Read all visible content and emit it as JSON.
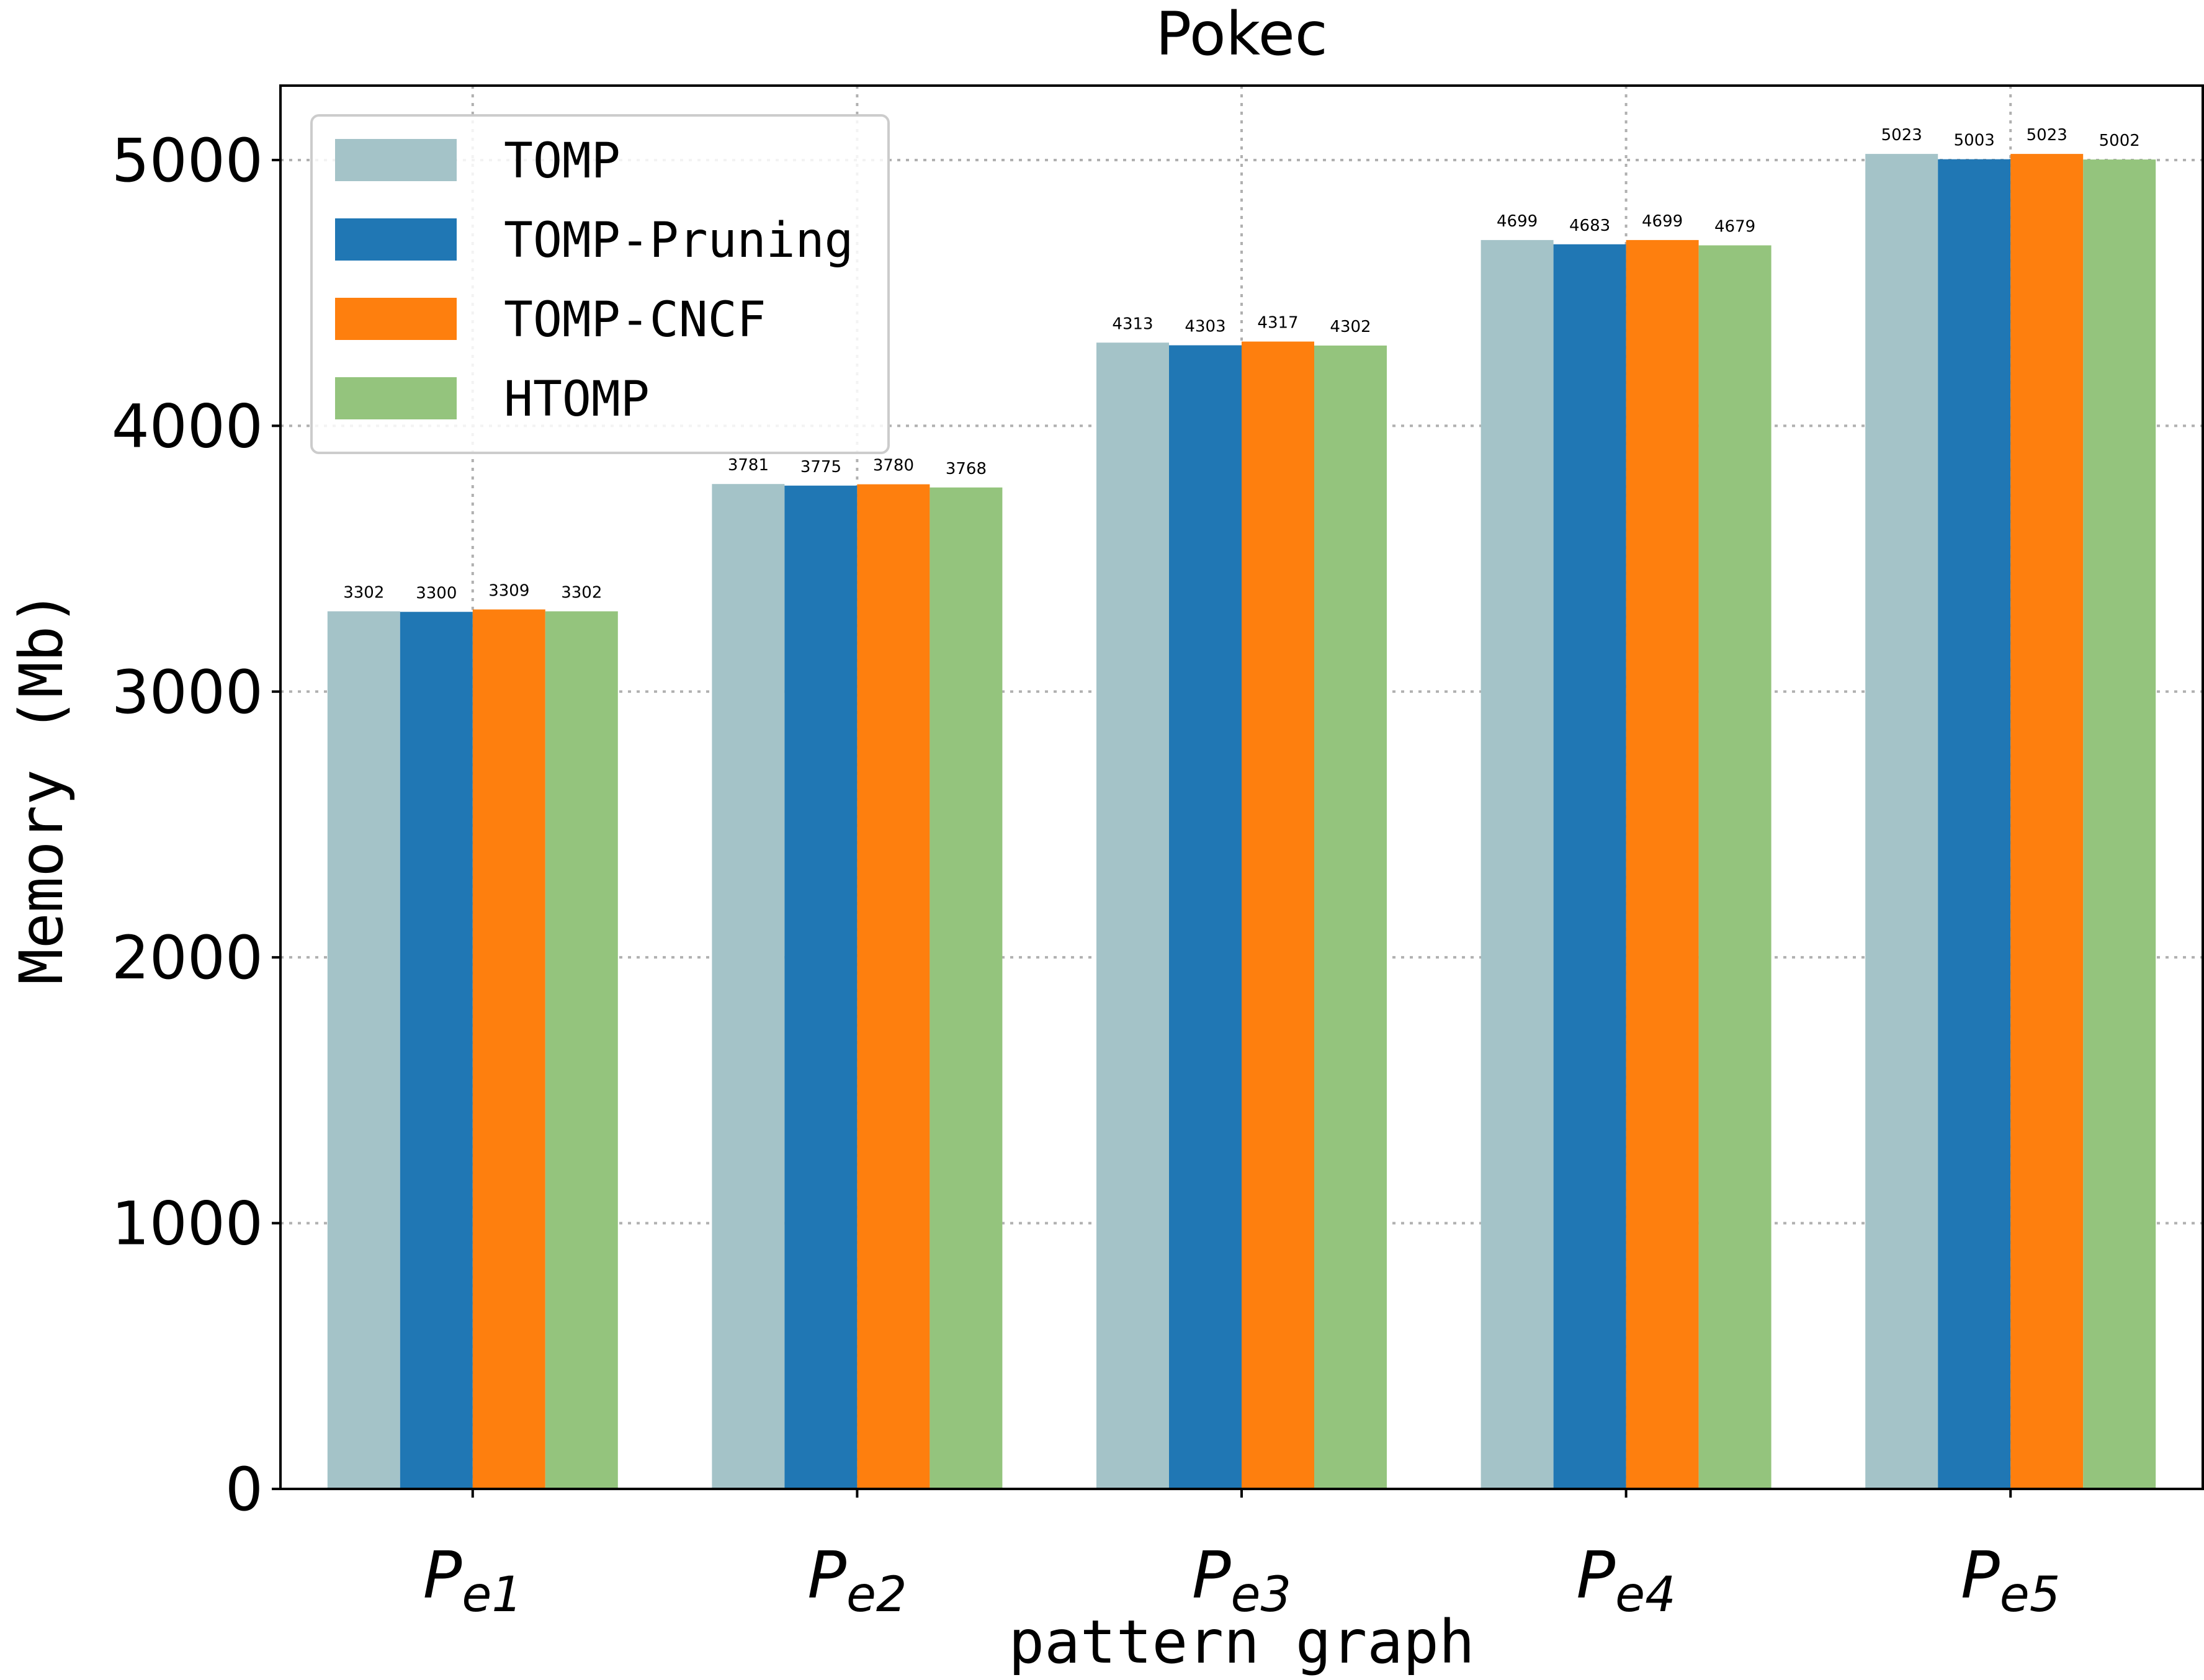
{
  "chart_data": {
    "type": "bar",
    "title": "Pokec",
    "xlabel": "pattern graph",
    "ylabel": "Memory (Mb)",
    "categories": [
      {
        "base": "P",
        "sub": "e1"
      },
      {
        "base": "P",
        "sub": "e2"
      },
      {
        "base": "P",
        "sub": "e3"
      },
      {
        "base": "P",
        "sub": "e4"
      },
      {
        "base": "P",
        "sub": "e5"
      }
    ],
    "series": [
      {
        "name": "TOMP",
        "color": "#a4c3c8",
        "values": [
          3302,
          3781,
          4313,
          4699,
          5023
        ]
      },
      {
        "name": "TOMP-Pruning",
        "color": "#2077b4",
        "values": [
          3300,
          3775,
          4303,
          4683,
          5003
        ]
      },
      {
        "name": "TOMP-CNCF",
        "color": "#fe7f0e",
        "values": [
          3309,
          3780,
          4317,
          4699,
          5023
        ]
      },
      {
        "name": "HTOMP",
        "color": "#94c47d",
        "values": [
          3302,
          3768,
          4302,
          4679,
          5002
        ]
      }
    ],
    "ylim": [
      0,
      5280
    ],
    "yticks": [
      0,
      1000,
      2000,
      3000,
      4000,
      5000
    ],
    "grid": true,
    "legend": "top-left"
  }
}
